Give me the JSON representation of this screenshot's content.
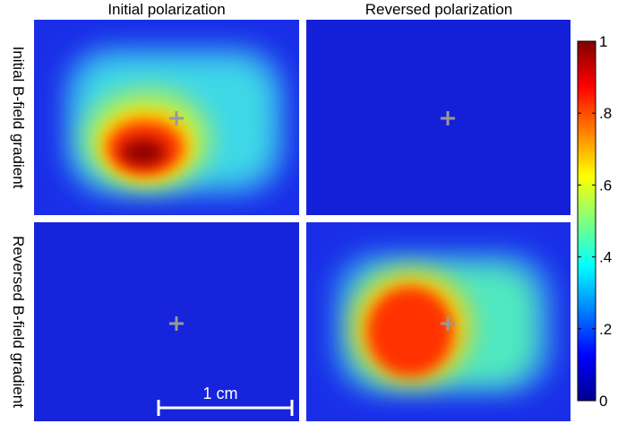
{
  "chart_data": {
    "type": "heatmap",
    "column_titles": [
      "Initial polarization",
      "Reversed polarization"
    ],
    "row_titles": [
      "Initial B-field gradient",
      "Reversed B-field gradient"
    ],
    "scale_bar_label": "1 cm",
    "colorbar": {
      "lim": [
        0,
        1
      ],
      "ticks": [
        0,
        {
          "value": 0.2,
          "label": ".2"
        },
        {
          "value": 0.4,
          "label": ".4"
        },
        {
          "value": 0.6,
          "label": ".6"
        },
        {
          "value": 0.8,
          "label": ".8"
        },
        1
      ]
    }
  }
}
